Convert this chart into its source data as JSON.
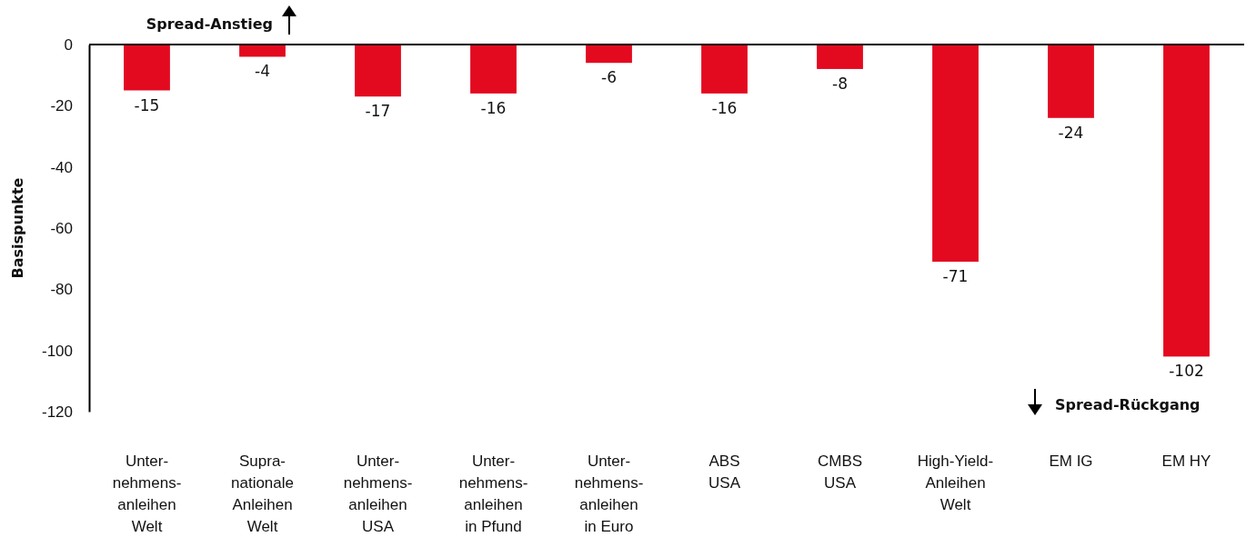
{
  "chart_data": {
    "type": "bar",
    "ylabel": "Basispunkte",
    "categories": [
      "Unter-\nnehmens-\nanleihen\nWelt",
      "Supra-\nnationale\nAnleihen\nWelt",
      "Unter-\nnehmens-\nanleihen\nUSA",
      "Unter-\nnehmens-\nanleihen\nin Pfund",
      "Unter-\nnehmens-\nanleihen\nin Euro",
      "ABS\nUSA",
      "CMBS\nUSA",
      "High-Yield-\nAnleihen\nWelt",
      "EM IG",
      "EM HY"
    ],
    "values": [
      -15,
      -4,
      -17,
      -16,
      -6,
      -16,
      -8,
      -71,
      -24,
      -102
    ],
    "color": "#e30a20",
    "data_labels": true,
    "ylim": [
      -120,
      0
    ],
    "yticks": [
      0,
      -20,
      -40,
      -60,
      -80,
      -100,
      -120
    ],
    "annotations": [
      "Spread-Anstieg",
      "Spread-Rückgang"
    ]
  }
}
